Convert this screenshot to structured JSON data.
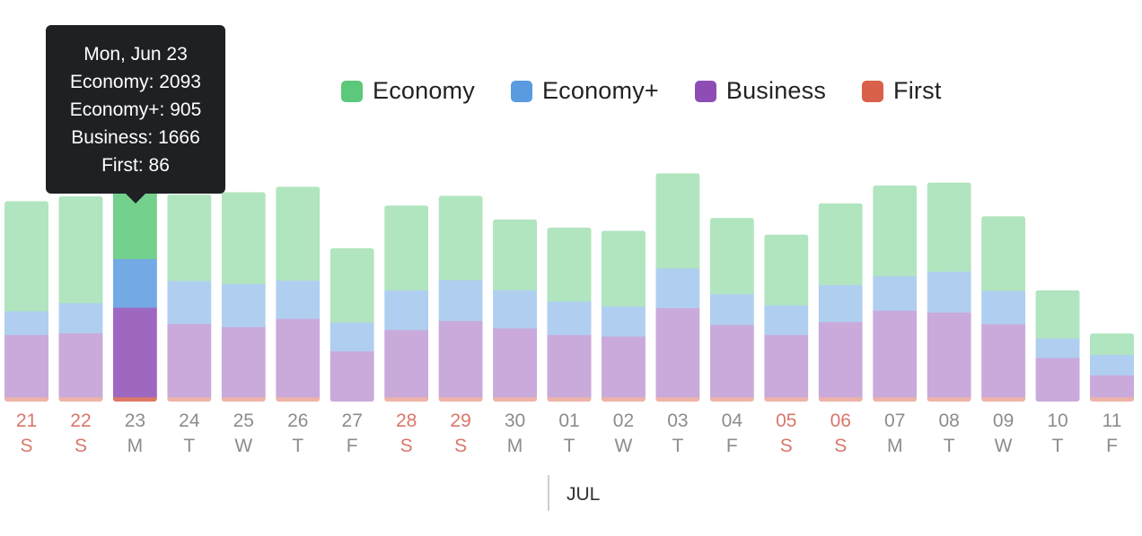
{
  "tooltip": {
    "title": "Mon, Jun 23",
    "lines": [
      "Economy: 2093",
      "Economy+: 905",
      "Business: 1666",
      "First: 86"
    ]
  },
  "legend": [
    {
      "label": "Economy",
      "color": "#5cc879"
    },
    {
      "label": "Economy+",
      "color": "#5a9ae0"
    },
    {
      "label": "Business",
      "color": "#8e4db5"
    },
    {
      "label": "First",
      "color": "#d9604a"
    }
  ],
  "month_label": "JUL",
  "chart_data": {
    "type": "bar",
    "stacked": true,
    "highlighted_index": 2,
    "ylim": [
      0,
      5500
    ],
    "categories": [
      "21",
      "22",
      "23",
      "24",
      "25",
      "26",
      "27",
      "28",
      "29",
      "30",
      "01",
      "02",
      "03",
      "04",
      "05",
      "06",
      "07",
      "08",
      "09",
      "10",
      "11"
    ],
    "weekdays": [
      "S",
      "S",
      "M",
      "T",
      "W",
      "T",
      "F",
      "S",
      "S",
      "M",
      "T",
      "W",
      "T",
      "F",
      "S",
      "S",
      "M",
      "T",
      "W",
      "T",
      "F"
    ],
    "weekend": [
      true,
      true,
      false,
      false,
      false,
      false,
      false,
      true,
      true,
      false,
      false,
      false,
      false,
      false,
      true,
      true,
      false,
      false,
      false,
      false,
      false
    ],
    "series": [
      {
        "name": "First",
        "color": "#d9604a",
        "values": [
          86,
          86,
          86,
          86,
          86,
          86,
          0,
          86,
          86,
          86,
          86,
          86,
          86,
          86,
          86,
          86,
          86,
          86,
          86,
          0,
          86
        ]
      },
      {
        "name": "Business",
        "color": "#8e4db5",
        "values": [
          1160,
          1190,
          1666,
          1363,
          1306,
          1460,
          940,
          1250,
          1420,
          1282,
          1160,
          1131,
          1659,
          1348,
          1160,
          1400,
          1612,
          1577,
          1360,
          820,
          410
        ]
      },
      {
        "name": "Economy+",
        "color": "#5a9ae0",
        "values": [
          440,
          560,
          905,
          800,
          800,
          710,
          540,
          740,
          760,
          710,
          620,
          560,
          740,
          570,
          550,
          690,
          640,
          760,
          620,
          360,
          380
        ]
      },
      {
        "name": "Economy",
        "color": "#5cc879",
        "values": [
          2040,
          1980,
          2093,
          1600,
          1700,
          1740,
          1370,
          1570,
          1560,
          1310,
          1370,
          1400,
          1760,
          1410,
          1310,
          1510,
          1680,
          1650,
          1380,
          890,
          390
        ]
      }
    ]
  }
}
